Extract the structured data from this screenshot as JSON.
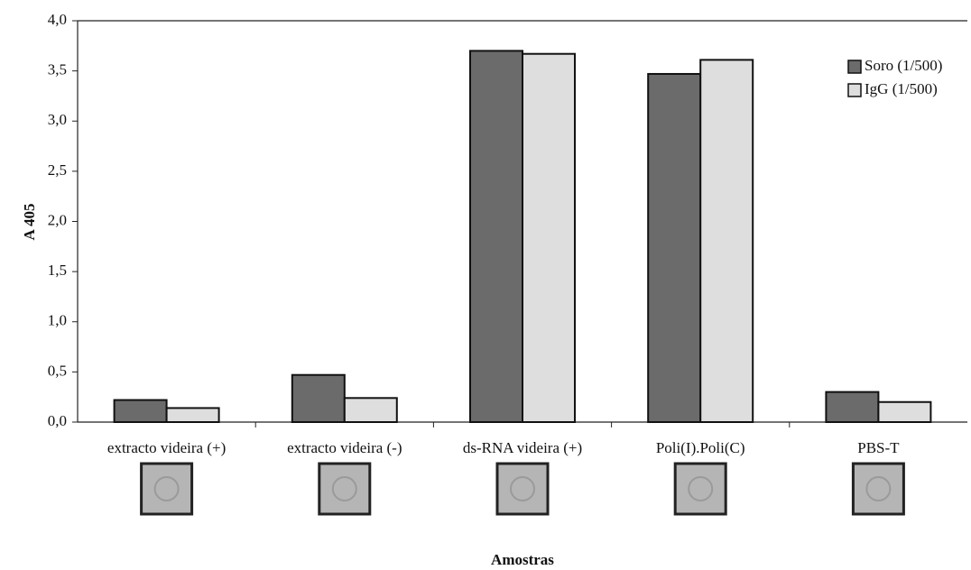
{
  "chart_data": {
    "type": "bar",
    "y_label": "A 405",
    "x_label": "Amostras",
    "categories": [
      "extracto videira (+)",
      "extracto videira (-)",
      "ds-RNA videira (+)",
      "Poli(I).Poli(C)",
      "PBS-T"
    ],
    "series": [
      {
        "name": "Soro (1/500)",
        "color": "#6b6b6b",
        "values": [
          0.22,
          0.47,
          3.7,
          3.47,
          0.3
        ]
      },
      {
        "name": "IgG (1/500)",
        "color": "#dedede",
        "values": [
          0.14,
          0.24,
          3.67,
          3.61,
          0.2
        ]
      }
    ],
    "ylim": [
      0,
      4
    ],
    "yticks": [
      {
        "value": 0,
        "label": "0,0"
      },
      {
        "value": 0.5,
        "label": "0,5"
      },
      {
        "value": 1,
        "label": "1,0"
      },
      {
        "value": 1.5,
        "label": "1,5"
      },
      {
        "value": 2,
        "label": "2,0"
      },
      {
        "value": 2.5,
        "label": "2,5"
      },
      {
        "value": 3,
        "label": "3,0"
      },
      {
        "value": 3.5,
        "label": "3,5"
      },
      {
        "value": 4,
        "label": "4,0"
      }
    ],
    "grid": false
  }
}
